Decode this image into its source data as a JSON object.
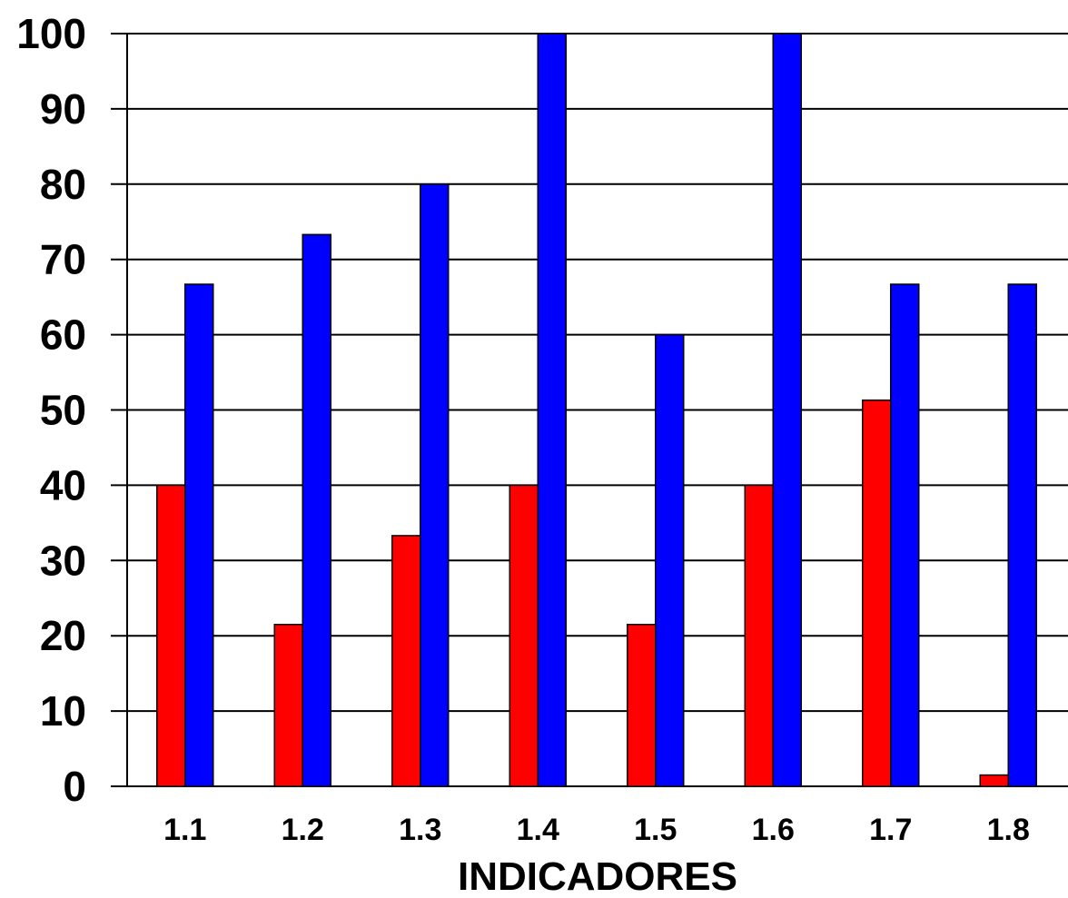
{
  "chart_data": {
    "type": "bar",
    "title": "",
    "xlabel": "INDICADORES",
    "ylabel": "",
    "ylim": [
      0,
      100
    ],
    "yticks": [
      "0",
      "10",
      "20",
      "30",
      "40",
      "50",
      "60",
      "70",
      "80",
      "90",
      "100"
    ],
    "grid": true,
    "categories": [
      "1.1",
      "1.2",
      "1.3",
      "1.4",
      "1.5",
      "1.6",
      "1.7",
      "1.8"
    ],
    "series": [
      {
        "color": "#ff0000",
        "values": [
          40,
          21.5,
          33.3,
          40,
          21.5,
          40,
          51.3,
          1.5
        ]
      },
      {
        "color": "#0000ff",
        "values": [
          66.7,
          73.3,
          80,
          100,
          60,
          100,
          66.7,
          66.7
        ]
      }
    ]
  }
}
